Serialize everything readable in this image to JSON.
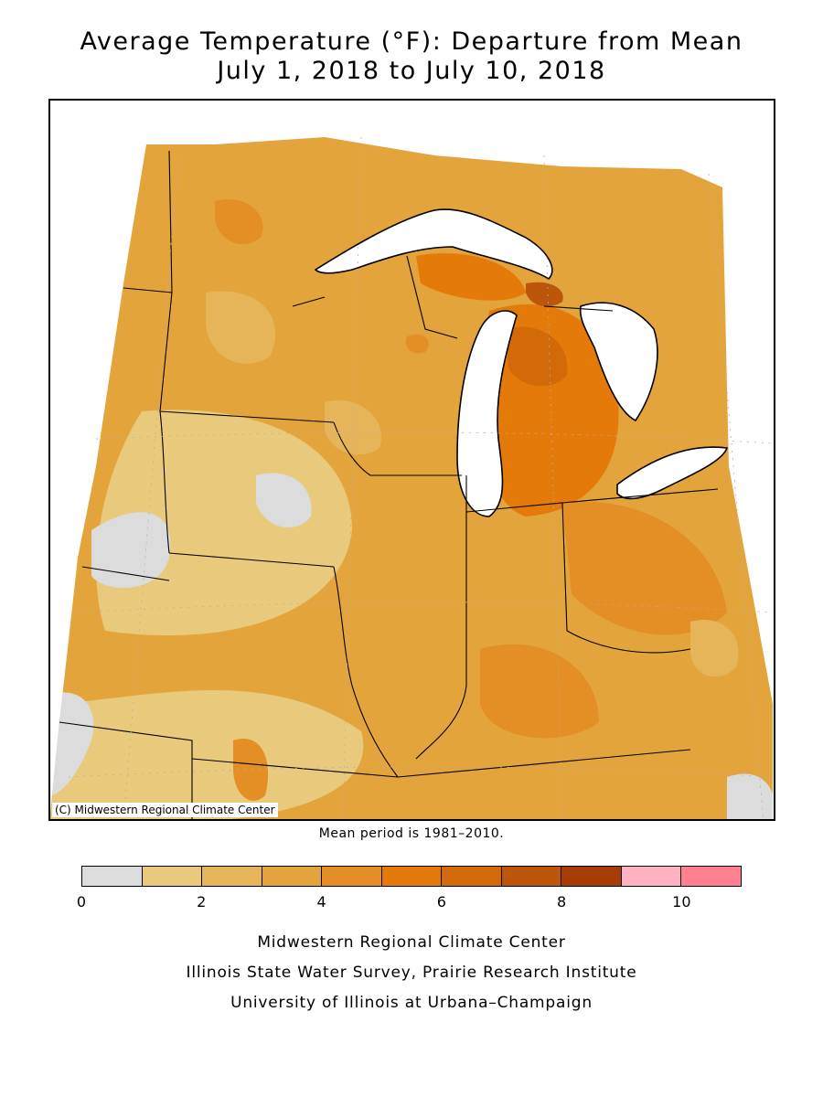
{
  "title_line1": "Average Temperature (°F): Departure from Mean",
  "title_line2": "July 1, 2018 to July 10, 2018",
  "map": {
    "copyright": "(C) Midwestern Regional Climate Center",
    "lake_color": "#ffffff",
    "background_color": "#ffffff"
  },
  "mean_note": "Mean period is 1981–2010.",
  "legend": {
    "colors": [
      "#dcdcdc",
      "#e9c97b",
      "#e6b55a",
      "#e4a43c",
      "#e38f26",
      "#e37a09",
      "#d26a09",
      "#bb560a",
      "#a63d07",
      "#ffb3c2",
      "#ff8090"
    ],
    "bin_edges": [
      0,
      1,
      2,
      3,
      4,
      5,
      6,
      7,
      8,
      9,
      10,
      11
    ],
    "tick_labels": [
      "0",
      "2",
      "4",
      "6",
      "8",
      "10"
    ],
    "tick_values": [
      0,
      2,
      4,
      6,
      8,
      10
    ]
  },
  "footer": {
    "line1": "Midwestern Regional Climate Center",
    "line2": "Illinois State Water Survey, Prairie Research Institute",
    "line3": "University of Illinois at Urbana–Champaign"
  }
}
